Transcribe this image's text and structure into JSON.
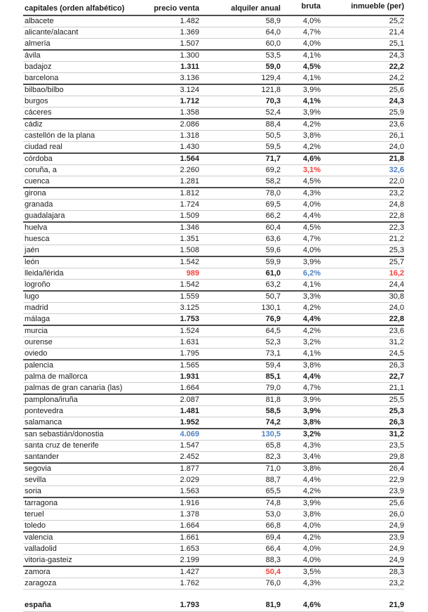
{
  "colors": {
    "text": "#1b1b1b",
    "negative_red": "#f4403a",
    "positive_blue": "#4f81c2",
    "row_line": "#cccccc",
    "group_line": "#4d4d4d"
  },
  "chart_data": {
    "type": "table",
    "title": "",
    "columns": [
      "capitales (orden alfabético)",
      "precio venta",
      "alquiler anual",
      "bruta",
      "inmueble (per)"
    ],
    "rows": [
      {
        "name": "albacete",
        "values": [
          "1.482",
          "58,9",
          "4,0%",
          "25,2"
        ]
      },
      {
        "name": "alicante/alacant",
        "values": [
          "1.369",
          "64,0",
          "4,7%",
          "21,4"
        ]
      },
      {
        "name": "almería",
        "values": [
          "1.507",
          "60,0",
          "4,0%",
          "25,1"
        ],
        "group_end": true
      },
      {
        "name": "ávila",
        "values": [
          "1.300",
          "53,5",
          "4,1%",
          "24,3"
        ]
      },
      {
        "name": "badajoz",
        "values": [
          "1.311",
          "59,0",
          "4,5%",
          "22,2"
        ],
        "styles": [
          "bold",
          "bold",
          "bold",
          "bold"
        ]
      },
      {
        "name": "barcelona",
        "values": [
          "3.136",
          "129,4",
          "4,1%",
          "24,2"
        ],
        "group_end": true
      },
      {
        "name": "bilbao/bilbo",
        "values": [
          "3.124",
          "121,8",
          "3,9%",
          "25,6"
        ]
      },
      {
        "name": "burgos",
        "values": [
          "1.712",
          "70,3",
          "4,1%",
          "24,3"
        ],
        "styles": [
          "bold",
          "bold",
          "bold",
          "bold"
        ]
      },
      {
        "name": "cáceres",
        "values": [
          "1.358",
          "52,4",
          "3,9%",
          "25,9"
        ],
        "group_end": true
      },
      {
        "name": "cádiz",
        "values": [
          "2.086",
          "88,4",
          "4,2%",
          "23,6"
        ]
      },
      {
        "name": "castellón de la plana",
        "values": [
          "1.318",
          "50,5",
          "3,8%",
          "26,1"
        ]
      },
      {
        "name": "ciudad real",
        "values": [
          "1.430",
          "59,5",
          "4,2%",
          "24,0"
        ],
        "group_end": true
      },
      {
        "name": "córdoba",
        "values": [
          "1.564",
          "71,7",
          "4,6%",
          "21,8"
        ],
        "styles": [
          "bold",
          "bold",
          "bold",
          "bold"
        ]
      },
      {
        "name": "coruña, a",
        "values": [
          "2.260",
          "69,2",
          "3,1%",
          "32,6"
        ],
        "styles": [
          null,
          null,
          "red",
          "blue"
        ]
      },
      {
        "name": "cuenca",
        "values": [
          "1.281",
          "58,2",
          "4,5%",
          "22,0"
        ],
        "group_end": true
      },
      {
        "name": "girona",
        "values": [
          "1.812",
          "78,0",
          "4,3%",
          "23,2"
        ]
      },
      {
        "name": "granada",
        "values": [
          "1.724",
          "69,5",
          "4,0%",
          "24,8"
        ]
      },
      {
        "name": "guadalajara",
        "values": [
          "1.509",
          "66,2",
          "4,4%",
          "22,8"
        ],
        "group_end": true
      },
      {
        "name": "huelva",
        "values": [
          "1.346",
          "60,4",
          "4,5%",
          "22,3"
        ]
      },
      {
        "name": "huesca",
        "values": [
          "1.351",
          "63,6",
          "4,7%",
          "21,2"
        ]
      },
      {
        "name": "jaén",
        "values": [
          "1.508",
          "59,6",
          "4,0%",
          "25,3"
        ],
        "group_end": true
      },
      {
        "name": "león",
        "values": [
          "1.542",
          "59,9",
          "3,9%",
          "25,7"
        ]
      },
      {
        "name": "lleida/lérida",
        "values": [
          "989",
          "61,0",
          "6,2%",
          "16,2"
        ],
        "styles": [
          "red",
          "bold",
          "blue",
          "red"
        ]
      },
      {
        "name": "logroño",
        "values": [
          "1.542",
          "63,2",
          "4,1%",
          "24,4"
        ],
        "group_end": true
      },
      {
        "name": "lugo",
        "values": [
          "1.559",
          "50,7",
          "3,3%",
          "30,8"
        ]
      },
      {
        "name": "madrid",
        "values": [
          "3.125",
          "130,1",
          "4,2%",
          "24,0"
        ]
      },
      {
        "name": "málaga",
        "values": [
          "1.753",
          "76,9",
          "4,4%",
          "22,8"
        ],
        "styles": [
          "bold",
          "bold",
          "bold",
          "bold"
        ],
        "group_end": true
      },
      {
        "name": "murcia",
        "values": [
          "1.524",
          "64,5",
          "4,2%",
          "23,6"
        ]
      },
      {
        "name": "ourense",
        "values": [
          "1.631",
          "52,3",
          "3,2%",
          "31,2"
        ]
      },
      {
        "name": "oviedo",
        "values": [
          "1.795",
          "73,1",
          "4,1%",
          "24,5"
        ],
        "group_end": true
      },
      {
        "name": "palencia",
        "values": [
          "1.565",
          "59,4",
          "3,8%",
          "26,3"
        ]
      },
      {
        "name": "palma de mallorca",
        "values": [
          "1.931",
          "85,1",
          "4,4%",
          "22,7"
        ],
        "styles": [
          "bold",
          "bold",
          "bold",
          "bold"
        ]
      },
      {
        "name": "palmas de gran canaria (las)",
        "values": [
          "1.664",
          "79,0",
          "4,7%",
          "21,1"
        ],
        "group_end": true
      },
      {
        "name": "pamplona/iruña",
        "values": [
          "2.087",
          "81,8",
          "3,9%",
          "25,5"
        ]
      },
      {
        "name": "pontevedra",
        "values": [
          "1.481",
          "58,5",
          "3,9%",
          "25,3"
        ],
        "styles": [
          "bold",
          "bold",
          "bold",
          "bold"
        ]
      },
      {
        "name": "salamanca",
        "values": [
          "1.952",
          "74,2",
          "3,8%",
          "26,3"
        ],
        "styles": [
          "bold",
          "bold",
          "bold",
          "bold"
        ],
        "group_end": true
      },
      {
        "name": "san sebastián/donostia",
        "values": [
          "4.069",
          "130,5",
          "3,2%",
          "31,2"
        ],
        "styles": [
          "blue",
          "blue",
          "bold",
          "bold"
        ]
      },
      {
        "name": "santa cruz de tenerife",
        "values": [
          "1.547",
          "65,8",
          "4,3%",
          "23,5"
        ]
      },
      {
        "name": "santander",
        "values": [
          "2.452",
          "82,3",
          "3,4%",
          "29,8"
        ],
        "group_end": true
      },
      {
        "name": "segovia",
        "values": [
          "1.877",
          "71,0",
          "3,8%",
          "26,4"
        ]
      },
      {
        "name": "sevilla",
        "values": [
          "2.029",
          "88,7",
          "4,4%",
          "22,9"
        ]
      },
      {
        "name": "soria",
        "values": [
          "1.563",
          "65,5",
          "4,2%",
          "23,9"
        ],
        "group_end": true
      },
      {
        "name": "tarragona",
        "values": [
          "1.916",
          "74,8",
          "3,9%",
          "25,6"
        ]
      },
      {
        "name": "teruel",
        "values": [
          "1.378",
          "53,0",
          "3,8%",
          "26,0"
        ]
      },
      {
        "name": "toledo",
        "values": [
          "1.664",
          "66,8",
          "4,0%",
          "24,9"
        ],
        "group_end": true
      },
      {
        "name": "valencia",
        "values": [
          "1.661",
          "69,4",
          "4,2%",
          "23,9"
        ]
      },
      {
        "name": "valladolid",
        "values": [
          "1.653",
          "66,4",
          "4,0%",
          "24,9"
        ]
      },
      {
        "name": "vitoria-gasteiz",
        "values": [
          "2.199",
          "88,3",
          "4,0%",
          "24,9"
        ],
        "group_end": true
      },
      {
        "name": "zamora",
        "values": [
          "1.427",
          "50,4",
          "3,5%",
          "28,3"
        ],
        "styles": [
          null,
          "red",
          null,
          null
        ]
      },
      {
        "name": "zaragoza",
        "values": [
          "1.762",
          "76,0",
          "4,3%",
          "23,2"
        ]
      }
    ],
    "total_row": {
      "name": "españa",
      "values": [
        "1.793",
        "81,9",
        "4,6%",
        "21,9"
      ]
    },
    "legend": {
      "red_meaning": "minimum value in column",
      "blue_meaning": "maximum value in column"
    }
  }
}
